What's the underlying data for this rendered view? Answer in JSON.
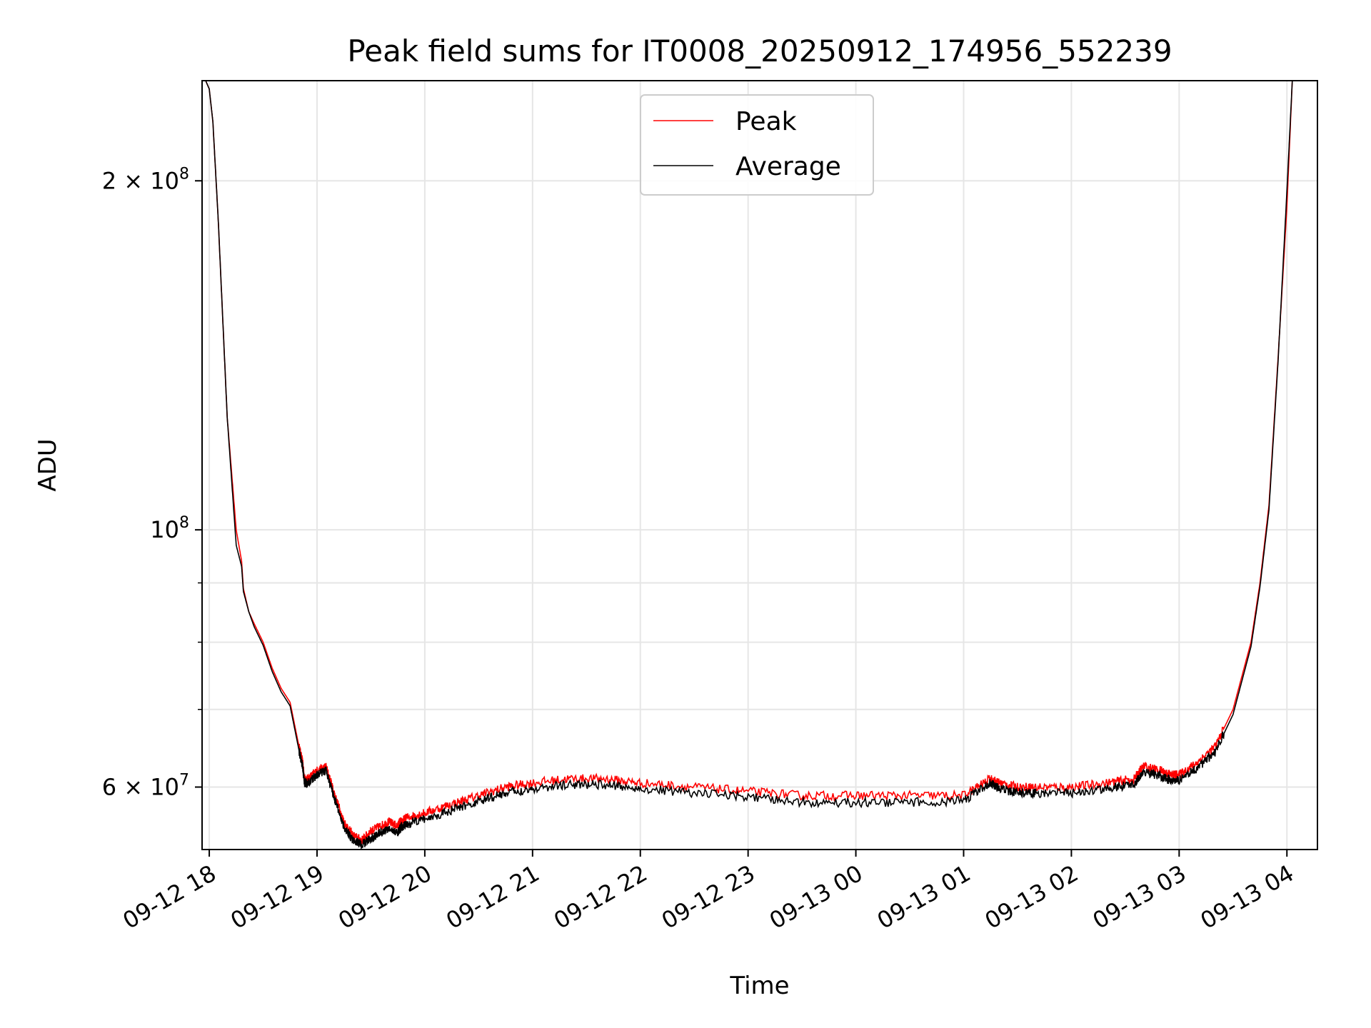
{
  "chart_data": {
    "type": "line",
    "title": "Peak field sums for IT0008_20250912_174956_552239",
    "xlabel": "Time",
    "ylabel": "ADU",
    "y_scale": "log",
    "ylim": [
      53000000,
      244000000
    ],
    "xlim": [
      "2025-09-12 17:56",
      "2025-09-13 04:17"
    ],
    "x_ticks": [
      {
        "value": "2025-09-12 18:00",
        "label": "09-12 18"
      },
      {
        "value": "2025-09-12 19:00",
        "label": "09-12 19"
      },
      {
        "value": "2025-09-12 20:00",
        "label": "09-12 20"
      },
      {
        "value": "2025-09-12 21:00",
        "label": "09-12 21"
      },
      {
        "value": "2025-09-12 22:00",
        "label": "09-12 22"
      },
      {
        "value": "2025-09-12 23:00",
        "label": "09-12 23"
      },
      {
        "value": "2025-09-13 00:00",
        "label": "09-13 00"
      },
      {
        "value": "2025-09-13 01:00",
        "label": "09-13 01"
      },
      {
        "value": "2025-09-13 02:00",
        "label": "09-13 02"
      },
      {
        "value": "2025-09-13 03:00",
        "label": "09-13 03"
      },
      {
        "value": "2025-09-13 04:00",
        "label": "09-13 04"
      }
    ],
    "y_major_ticks": [
      {
        "value": 60000000,
        "mantissa": "6",
        "exponent": "7"
      },
      {
        "value": 100000000,
        "mantissa": "",
        "exponent": "8"
      },
      {
        "value": 200000000,
        "mantissa": "2",
        "exponent": "8"
      }
    ],
    "y_minor_ticks": [
      70000000,
      80000000,
      90000000
    ],
    "grid": true,
    "legend_position": "top-center",
    "series": [
      {
        "name": "Peak",
        "color": "#ff0000",
        "x": [
          "2025-09-12 17:58",
          "2025-09-12 18:00",
          "2025-09-12 18:02",
          "2025-09-12 18:05",
          "2025-09-12 18:10",
          "2025-09-12 18:15",
          "2025-09-12 18:18",
          "2025-09-12 18:19",
          "2025-09-12 18:22",
          "2025-09-12 18:25",
          "2025-09-12 18:30",
          "2025-09-12 18:35",
          "2025-09-12 18:40",
          "2025-09-12 18:45",
          "2025-09-12 18:50",
          "2025-09-12 18:52",
          "2025-09-12 18:53",
          "2025-09-12 18:55",
          "2025-09-12 19:00",
          "2025-09-12 19:05",
          "2025-09-12 19:10",
          "2025-09-12 19:15",
          "2025-09-12 19:20",
          "2025-09-12 19:25",
          "2025-09-12 19:30",
          "2025-09-12 19:35",
          "2025-09-12 19:40",
          "2025-09-12 19:45",
          "2025-09-12 19:46",
          "2025-09-12 19:47",
          "2025-09-12 19:50",
          "2025-09-12 20:00",
          "2025-09-12 20:15",
          "2025-09-12 20:30",
          "2025-09-12 20:45",
          "2025-09-12 21:00",
          "2025-09-12 21:20",
          "2025-09-12 21:40",
          "2025-09-12 22:00",
          "2025-09-12 22:30",
          "2025-09-12 23:00",
          "2025-09-12 23:30",
          "2025-09-13 00:00",
          "2025-09-13 00:30",
          "2025-09-13 01:00",
          "2025-09-13 01:15",
          "2025-09-13 01:20",
          "2025-09-13 01:30",
          "2025-09-13 01:40",
          "2025-09-13 02:00",
          "2025-09-13 02:20",
          "2025-09-13 02:35",
          "2025-09-13 02:40",
          "2025-09-13 02:50",
          "2025-09-13 02:55",
          "2025-09-13 03:00",
          "2025-09-13 03:10",
          "2025-09-13 03:20",
          "2025-09-13 03:30",
          "2025-09-13 03:40",
          "2025-09-13 03:45",
          "2025-09-13 03:50",
          "2025-09-13 03:55",
          "2025-09-13 04:00",
          "2025-09-13 04:03"
        ],
        "y": [
          244000000,
          240000000,
          225000000,
          185000000,
          125000000,
          100000000,
          94000000,
          89000000,
          85000000,
          83000000,
          80000000,
          76000000,
          73000000,
          71000000,
          65000000,
          63000000,
          61000000,
          61000000,
          62000000,
          62500000,
          59000000,
          56000000,
          54500000,
          54000000,
          55000000,
          55500000,
          56000000,
          55500000,
          56000000,
          56000000,
          56500000,
          57000000,
          58000000,
          59000000,
          60000000,
          60500000,
          61000000,
          61000000,
          60500000,
          60000000,
          59500000,
          59000000,
          59000000,
          59000000,
          59000000,
          61000000,
          60500000,
          60000000,
          60000000,
          60000000,
          60500000,
          61000000,
          62500000,
          62000000,
          61500000,
          61500000,
          63000000,
          65000000,
          70000000,
          80000000,
          90000000,
          105000000,
          140000000,
          190000000,
          244000000
        ]
      },
      {
        "name": "Average",
        "color": "#000000",
        "x": [
          "2025-09-12 17:58",
          "2025-09-12 18:00",
          "2025-09-12 18:02",
          "2025-09-12 18:05",
          "2025-09-12 18:10",
          "2025-09-12 18:15",
          "2025-09-12 18:18",
          "2025-09-12 18:19",
          "2025-09-12 18:22",
          "2025-09-12 18:25",
          "2025-09-12 18:30",
          "2025-09-12 18:35",
          "2025-09-12 18:40",
          "2025-09-12 18:45",
          "2025-09-12 18:50",
          "2025-09-12 18:52",
          "2025-09-12 18:53",
          "2025-09-12 18:55",
          "2025-09-12 19:00",
          "2025-09-12 19:05",
          "2025-09-12 19:10",
          "2025-09-12 19:15",
          "2025-09-12 19:20",
          "2025-09-12 19:25",
          "2025-09-12 19:30",
          "2025-09-12 19:35",
          "2025-09-12 19:40",
          "2025-09-12 19:45",
          "2025-09-12 19:46",
          "2025-09-12 19:47",
          "2025-09-12 19:50",
          "2025-09-12 20:00",
          "2025-09-12 20:15",
          "2025-09-12 20:30",
          "2025-09-12 20:45",
          "2025-09-12 21:00",
          "2025-09-12 21:20",
          "2025-09-12 21:40",
          "2025-09-12 22:00",
          "2025-09-12 22:30",
          "2025-09-12 23:00",
          "2025-09-12 23:30",
          "2025-09-13 00:00",
          "2025-09-13 00:30",
          "2025-09-13 01:00",
          "2025-09-13 01:15",
          "2025-09-13 01:20",
          "2025-09-13 01:30",
          "2025-09-13 01:40",
          "2025-09-13 02:00",
          "2025-09-13 02:20",
          "2025-09-13 02:35",
          "2025-09-13 02:40",
          "2025-09-13 02:50",
          "2025-09-13 02:55",
          "2025-09-13 03:00",
          "2025-09-13 03:10",
          "2025-09-13 03:20",
          "2025-09-13 03:30",
          "2025-09-13 03:40",
          "2025-09-13 03:45",
          "2025-09-13 03:50",
          "2025-09-13 03:55",
          "2025-09-13 04:00",
          "2025-09-13 04:03"
        ],
        "y": [
          244000000,
          240000000,
          225000000,
          185000000,
          125000000,
          97000000,
          93000000,
          88500000,
          85000000,
          82500000,
          79500000,
          75500000,
          72500000,
          70500000,
          64500000,
          62500000,
          60500000,
          60500000,
          61500000,
          62000000,
          58500000,
          55500000,
          54000000,
          53500000,
          54200000,
          54800000,
          55200000,
          54800000,
          55200000,
          55400000,
          55700000,
          56300000,
          57300000,
          58300000,
          59300000,
          59800000,
          60300000,
          60300000,
          59800000,
          59300000,
          58800000,
          58200000,
          58200000,
          58200000,
          58400000,
          60500000,
          59800000,
          59300000,
          59300000,
          59300000,
          59800000,
          60400000,
          61800000,
          61300000,
          60800000,
          60800000,
          62300000,
          64300000,
          69300000,
          79300000,
          89300000,
          104000000,
          139000000,
          196000000,
          244000000
        ]
      }
    ]
  }
}
